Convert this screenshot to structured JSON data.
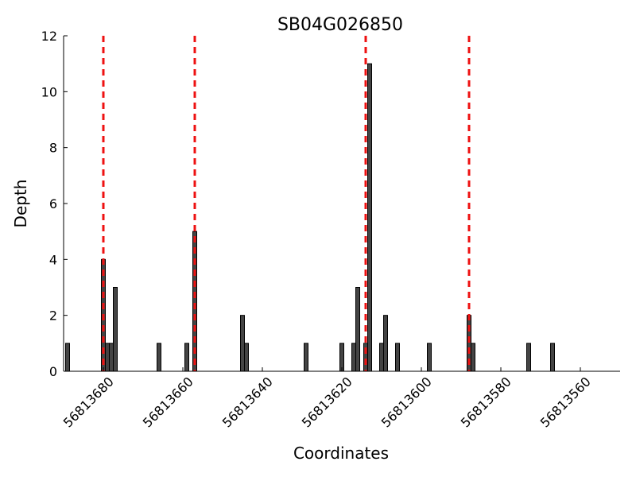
{
  "chart_data": {
    "type": "bar",
    "title": "SB04G026850",
    "xlabel": "Coordinates",
    "ylabel": "Depth",
    "xlim": [
      56813690,
      56813550
    ],
    "x_reversed": true,
    "ylim": [
      0,
      12
    ],
    "xticks": [
      56813680,
      56813660,
      56813640,
      56813620,
      56813600,
      56813580,
      56813560
    ],
    "xtick_labels": [
      "56813680",
      "56813660",
      "56813640",
      "56813620",
      "56813600",
      "56813580",
      "56813560"
    ],
    "yticks": [
      0,
      2,
      4,
      6,
      8,
      10,
      12
    ],
    "ytick_labels": [
      "0",
      "2",
      "4",
      "6",
      "8",
      "10",
      "12"
    ],
    "bar_color": "#444444",
    "grid": false,
    "series": [
      {
        "x": [
          56813689,
          56813680,
          56813679,
          56813678,
          56813677,
          56813666,
          56813659,
          56813657,
          56813645,
          56813644,
          56813629,
          56813620,
          56813617,
          56813616,
          56813614,
          56813613,
          56813610,
          56813609,
          56813606,
          56813598,
          56813588,
          56813587,
          56813573,
          56813567
        ],
        "values": [
          1,
          4,
          1,
          1,
          3,
          1,
          1,
          5,
          2,
          1,
          1,
          1,
          1,
          3,
          1,
          11,
          1,
          2,
          1,
          1,
          2,
          1,
          1,
          1
        ]
      }
    ],
    "reference_lines": {
      "x": [
        56813680,
        56813657,
        56813614,
        56813588
      ],
      "color": "#ee1111",
      "style": "dashed"
    }
  }
}
